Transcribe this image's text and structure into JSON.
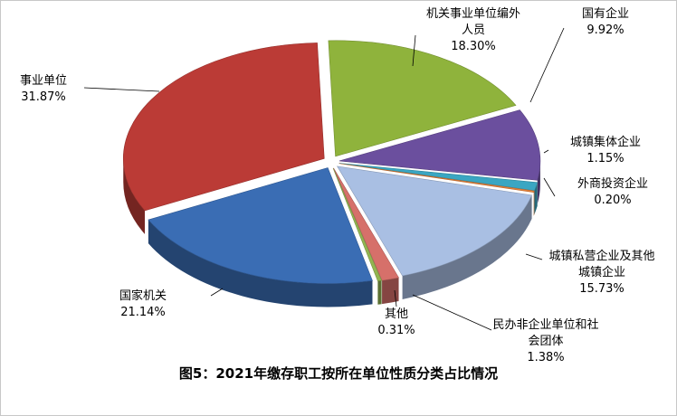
{
  "chart_data": {
    "type": "pie3d",
    "title": "图5：2021年缴存职工按所在单位性质分类占比情况",
    "categories": [
      "机关事业单位编外人员",
      "国有企业",
      "城镇集体企业",
      "外商投资企业",
      "城镇私营企业及其他城镇企业",
      "民办非企业单位和社会团体",
      "其他",
      "国家机关",
      "事业单位"
    ],
    "values": [
      18.3,
      9.92,
      1.15,
      0.2,
      15.73,
      1.38,
      0.31,
      21.14,
      31.87
    ],
    "value_labels": [
      "18.30%",
      "9.92%",
      "1.15%",
      "0.20%",
      "15.73%",
      "1.38%",
      "0.31%",
      "21.14%",
      "31.87%"
    ],
    "colors": [
      "#8fb33c",
      "#6b4f9e",
      "#3aa6c2",
      "#e8823a",
      "#a9bfe3",
      "#d6706a",
      "#92b550",
      "#3a6db4",
      "#bb3b36"
    ]
  }
}
